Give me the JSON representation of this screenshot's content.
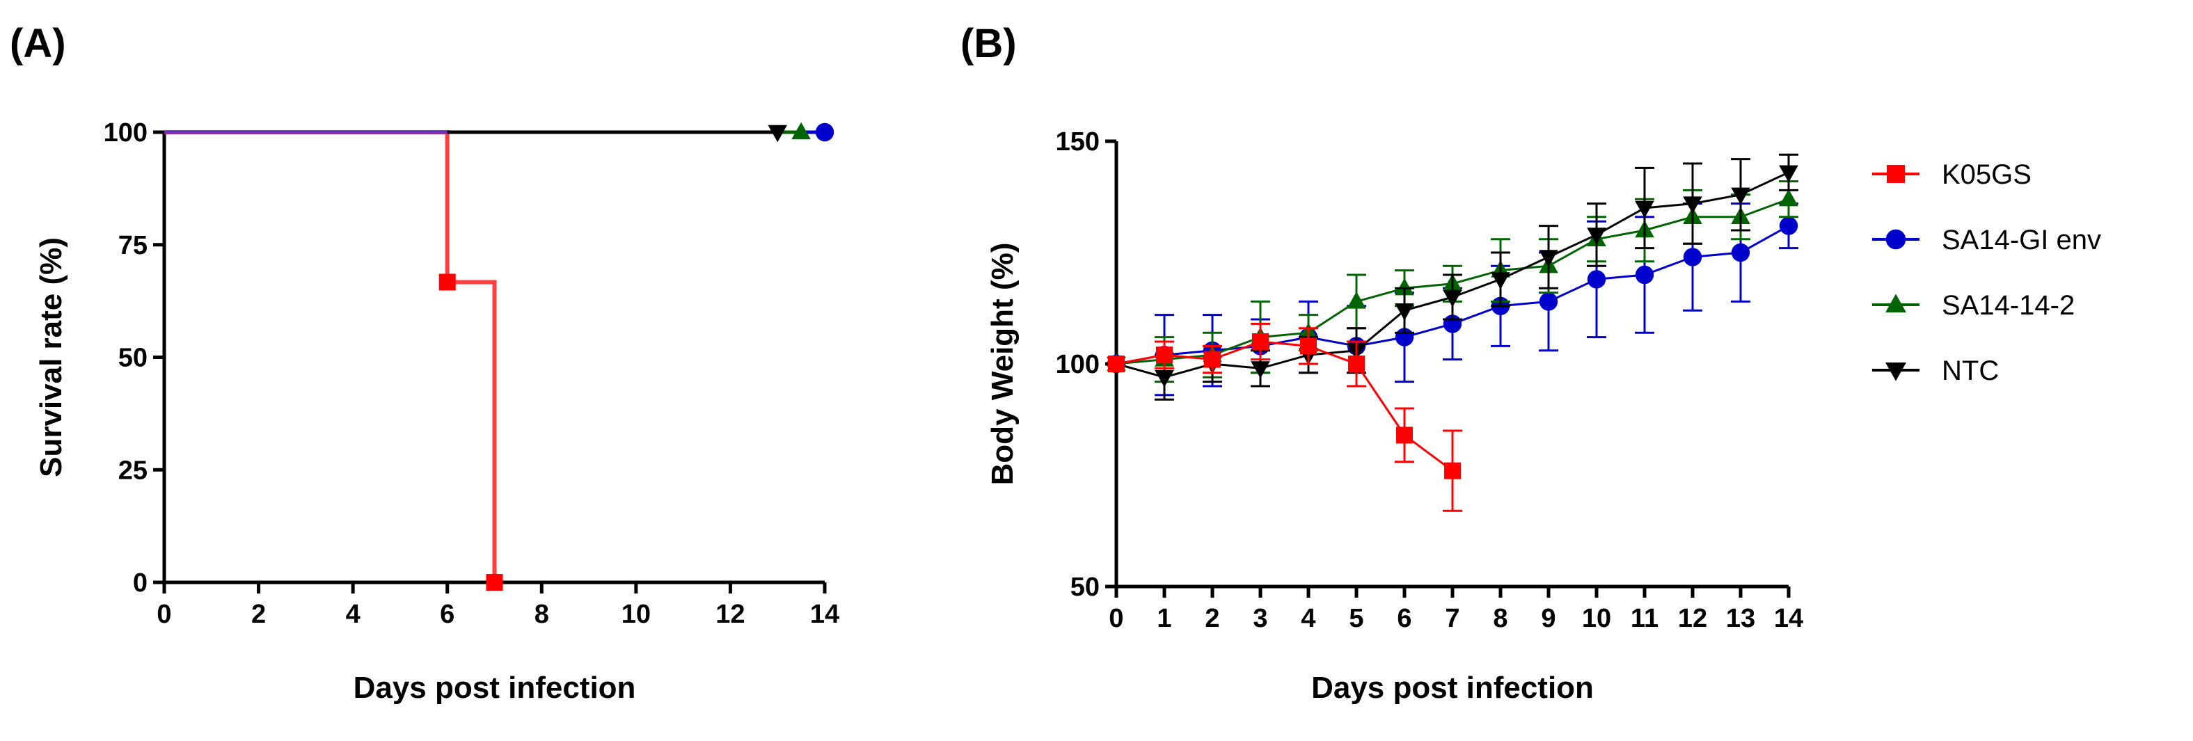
{
  "chart_data": [
    {
      "panel": "(A)",
      "type": "line",
      "subtype": "kaplan-meier survival",
      "xlabel": "Days post infection",
      "ylabel": "Survival rate (%)",
      "xlim": [
        0,
        14
      ],
      "ylim": [
        0,
        100
      ],
      "xticks": [
        "0",
        "2",
        "4",
        "6",
        "8",
        "10",
        "12",
        "14"
      ],
      "yticks": [
        "0",
        "25",
        "50",
        "75",
        "100"
      ],
      "series": [
        {
          "name": "K05GS",
          "color": "#ff0000",
          "marker": "square",
          "steps": [
            [
              0,
              100
            ],
            [
              6,
              100
            ],
            [
              6,
              66.7
            ],
            [
              7,
              66.7
            ],
            [
              7,
              0
            ]
          ],
          "markers": [
            [
              6,
              66.7
            ],
            [
              7,
              0
            ]
          ]
        },
        {
          "name": "SA14-GI env",
          "color": "#0000cc",
          "marker": "circle",
          "steps": [
            [
              0,
              100
            ],
            [
              14,
              100
            ]
          ],
          "markers": [
            [
              14,
              100
            ]
          ]
        },
        {
          "name": "SA14-14-2",
          "color": "#006400",
          "marker": "triangle-up",
          "steps": [
            [
              0,
              100
            ],
            [
              13.5,
              100
            ]
          ],
          "markers": [
            [
              13.5,
              100
            ]
          ]
        },
        {
          "name": "NTC",
          "color": "#000000",
          "marker": "triangle-down",
          "steps": [
            [
              0,
              100
            ],
            [
              13,
              100
            ]
          ],
          "markers": [
            [
              13,
              100
            ]
          ]
        }
      ]
    },
    {
      "panel": "(B)",
      "type": "line",
      "xlabel": "Days post infection",
      "ylabel": "Body Weight  (%)",
      "xlim": [
        0,
        14
      ],
      "ylim": [
        50,
        150
      ],
      "xticks": [
        "0",
        "1",
        "2",
        "3",
        "4",
        "5",
        "6",
        "7",
        "8",
        "9",
        "10",
        "11",
        "12",
        "13",
        "14"
      ],
      "yticks": [
        "50",
        "100",
        "150"
      ],
      "legend_position": "right",
      "series": [
        {
          "name": "K05GS",
          "color": "#ff0000",
          "marker": "square",
          "x": [
            0,
            1,
            2,
            3,
            4,
            5,
            6,
            7
          ],
          "y": [
            100,
            102,
            101,
            105,
            104,
            100,
            84,
            76
          ],
          "err": [
            0,
            3,
            3,
            4,
            4,
            5,
            6,
            9
          ]
        },
        {
          "name": "SA14-GI env",
          "color": "#0000cc",
          "marker": "circle",
          "x": [
            0,
            1,
            2,
            3,
            4,
            5,
            6,
            7,
            8,
            9,
            10,
            11,
            12,
            13,
            14
          ],
          "y": [
            100,
            102,
            103,
            104,
            106,
            104,
            106,
            109,
            113,
            114,
            119,
            120,
            124,
            125,
            131
          ],
          "err": [
            0,
            9,
            8,
            6,
            8,
            9,
            10,
            8,
            9,
            11,
            13,
            13,
            12,
            11,
            5
          ]
        },
        {
          "name": "SA14-14-2",
          "color": "#006400",
          "marker": "triangle-up",
          "x": [
            0,
            1,
            2,
            3,
            4,
            5,
            6,
            7,
            8,
            9,
            10,
            11,
            12,
            13,
            14
          ],
          "y": [
            100,
            101,
            102,
            106,
            107,
            114,
            117,
            118,
            121,
            122,
            128,
            130,
            133,
            133,
            137
          ],
          "err": [
            0,
            5,
            5,
            8,
            4,
            6,
            4,
            4,
            7,
            6,
            5,
            7,
            6,
            5,
            4
          ]
        },
        {
          "name": "NTC",
          "color": "#000000",
          "marker": "triangle-down",
          "x": [
            0,
            1,
            2,
            3,
            4,
            5,
            6,
            7,
            8,
            9,
            10,
            11,
            12,
            13,
            14
          ],
          "y": [
            100,
            97,
            100,
            99,
            102,
            103,
            112,
            115,
            119,
            124,
            129,
            135,
            136,
            138,
            143
          ],
          "err": [
            0,
            5,
            4,
            4,
            4,
            5,
            5,
            5,
            6,
            7,
            7,
            9,
            9,
            8,
            4
          ]
        }
      ]
    }
  ]
}
